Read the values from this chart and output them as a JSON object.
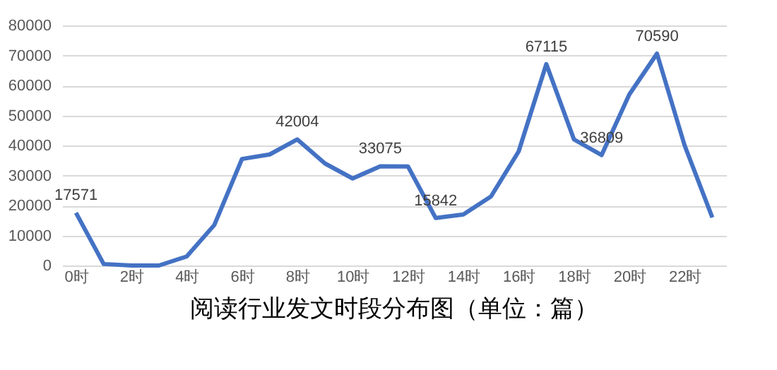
{
  "chart_data": {
    "type": "line",
    "title": "阅读行业发文时段分布图（单位：篇）",
    "categories": [
      "0时",
      null,
      "2时",
      null,
      "4时",
      null,
      "6时",
      null,
      "8时",
      null,
      "10时",
      null,
      "12时",
      null,
      "14时",
      null,
      "16时",
      null,
      "18时",
      null,
      "20时",
      null,
      "22时",
      null
    ],
    "series": [
      {
        "color": "#4472c4",
        "values": [
          17571,
          500,
          0,
          0,
          3000,
          13500,
          35500,
          37000,
          42004,
          34000,
          29000,
          33075,
          33000,
          15842,
          17000,
          23000,
          38000,
          67115,
          42000,
          36809,
          57000,
          70590,
          40000,
          16000
        ],
        "value_labels": [
          "17571",
          null,
          null,
          null,
          null,
          null,
          null,
          null,
          "42004",
          null,
          null,
          "33075",
          null,
          "15842",
          null,
          null,
          null,
          "67115",
          null,
          "36809",
          null,
          "70590",
          null,
          null
        ]
      }
    ],
    "ylim": [
      0,
      80000
    ],
    "yticks": [
      0,
      10000,
      20000,
      30000,
      40000,
      50000,
      60000,
      70000,
      80000
    ],
    "grid": "y",
    "marker": "none",
    "line_style": "solid"
  }
}
